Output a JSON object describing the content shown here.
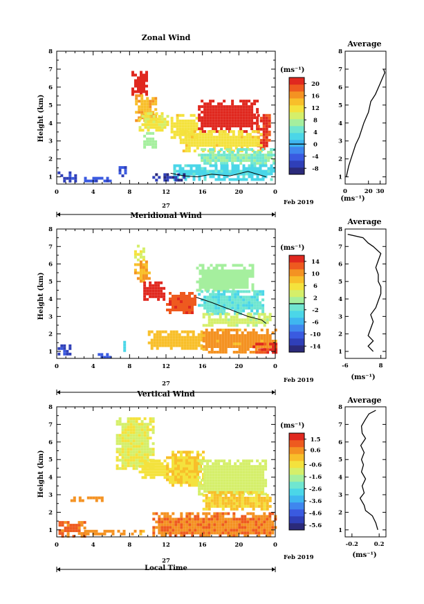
{
  "colors": {
    "scale": [
      "#2b2a7a",
      "#2f3fb8",
      "#3a5ae0",
      "#3f86ee",
      "#3fb6f0",
      "#4bd6e8",
      "#70e6d0",
      "#a5ef9e",
      "#d5ef6a",
      "#f4e23d",
      "#f8bf2a",
      "#f49222",
      "#ee5a1f",
      "#e0281f"
    ]
  },
  "chart_data": [
    {
      "type": "heatmap",
      "title": "Zonal Wind",
      "ylabel": "Height (km)",
      "xlim": [
        0,
        24
      ],
      "ylim": [
        0.6,
        8.0
      ],
      "xticks": [
        "0",
        "4",
        "8",
        "12",
        "16",
        "20",
        "0"
      ],
      "yticks": [
        "1",
        "2",
        "3",
        "4",
        "5",
        "6",
        "7",
        "8"
      ],
      "date_label": "27",
      "month_label": "Feb 2019",
      "colorbar": {
        "unit": "(ms⁻¹)",
        "ticks": [
          "20",
          "16",
          "12",
          "8",
          "4",
          "0",
          "-4",
          "-8"
        ],
        "range": [
          -10,
          22
        ],
        "zero_line": 0
      },
      "field": [
        {
          "x0": 8.2,
          "x1": 9.9,
          "y0": 5.6,
          "y1": 6.9,
          "v": 21
        },
        {
          "x0": 8.6,
          "x1": 10.8,
          "y0": 4.2,
          "y1": 5.6,
          "v": 15
        },
        {
          "x0": 9.0,
          "x1": 12.2,
          "y0": 3.6,
          "y1": 4.6,
          "v": 11
        },
        {
          "x0": 9.5,
          "x1": 11.0,
          "y0": 2.6,
          "y1": 3.5,
          "v": 7
        },
        {
          "x0": 12.5,
          "x1": 15.5,
          "y0": 3.2,
          "y1": 4.5,
          "v": 12
        },
        {
          "x0": 15.5,
          "x1": 22.0,
          "y0": 3.6,
          "y1": 5.3,
          "v": 21
        },
        {
          "x0": 22.0,
          "x1": 23.4,
          "y0": 2.6,
          "y1": 4.5,
          "v": 20
        },
        {
          "x0": 13.5,
          "x1": 22.5,
          "y0": 2.5,
          "y1": 3.6,
          "v": 12
        },
        {
          "x0": 15.5,
          "x1": 23.8,
          "y0": 1.7,
          "y1": 2.6,
          "v": 6
        },
        {
          "x0": 12.8,
          "x1": 24.0,
          "y0": 0.9,
          "y1": 1.7,
          "v": 3
        },
        {
          "x0": 10.5,
          "x1": 14.0,
          "y0": 0.8,
          "y1": 1.2,
          "v": -7
        },
        {
          "x0": 0.1,
          "x1": 2.0,
          "y0": 0.8,
          "y1": 1.3,
          "v": -6
        },
        {
          "x0": 6.8,
          "x1": 7.6,
          "y0": 1.0,
          "y1": 1.6,
          "v": -5
        },
        {
          "x0": 3.0,
          "x1": 6.0,
          "y0": 0.8,
          "y1": 1.0,
          "v": -5
        }
      ],
      "contour": [
        [
          12.5,
          1.2
        ],
        [
          14,
          1.05
        ],
        [
          15.5,
          1.0
        ],
        [
          17,
          1.15
        ],
        [
          19,
          1.05
        ],
        [
          21,
          1.3
        ],
        [
          23,
          1.0
        ]
      ],
      "average": {
        "title": "Average",
        "xlim": [
          0,
          35
        ],
        "xticks": [
          "0",
          "20",
          "30"
        ],
        "xlabel": "(ms⁻¹)",
        "x": [
          1,
          2,
          3,
          5,
          7,
          9,
          12,
          14,
          16,
          18,
          20,
          21,
          22,
          24,
          26,
          28,
          30,
          32,
          34,
          33
        ],
        "y": [
          1.0,
          1.3,
          1.6,
          2.0,
          2.4,
          2.8,
          3.2,
          3.6,
          4.0,
          4.3,
          4.6,
          4.9,
          5.2,
          5.4,
          5.6,
          5.9,
          6.2,
          6.5,
          6.8,
          7.0
        ]
      }
    },
    {
      "type": "heatmap",
      "title": "Meridional Wind",
      "ylabel": "Height (km)",
      "xlim": [
        0,
        24
      ],
      "ylim": [
        0.6,
        8.0
      ],
      "xticks": [
        "0",
        "4",
        "8",
        "12",
        "16",
        "20",
        "0"
      ],
      "yticks": [
        "1",
        "2",
        "3",
        "4",
        "5",
        "6",
        "7",
        "8"
      ],
      "date_label": "27",
      "month_label": "Feb 2019",
      "colorbar": {
        "unit": "(ms⁻¹)",
        "ticks": [
          "14",
          "10",
          "6",
          "2",
          "-2",
          "-6",
          "-10",
          "-14"
        ],
        "range": [
          -16,
          16
        ],
        "zero_line": 0
      },
      "field": [
        {
          "x0": 8.5,
          "x1": 9.6,
          "y0": 6.2,
          "y1": 7.1,
          "v": 4
        },
        {
          "x0": 8.5,
          "x1": 10.2,
          "y0": 5.0,
          "y1": 6.2,
          "v": 9
        },
        {
          "x0": 9.5,
          "x1": 11.8,
          "y0": 4.0,
          "y1": 5.0,
          "v": 15
        },
        {
          "x0": 12.0,
          "x1": 15.2,
          "y0": 3.2,
          "y1": 4.4,
          "v": 13
        },
        {
          "x0": 15.3,
          "x1": 21.5,
          "y0": 4.5,
          "y1": 6.0,
          "v": 1
        },
        {
          "x0": 15.5,
          "x1": 22.5,
          "y0": 3.2,
          "y1": 4.5,
          "v": -2
        },
        {
          "x0": 16.0,
          "x1": 23.5,
          "y0": 2.5,
          "y1": 3.2,
          "v": 3
        },
        {
          "x0": 10.0,
          "x1": 16.0,
          "y0": 1.2,
          "y1": 2.2,
          "v": 8
        },
        {
          "x0": 16.0,
          "x1": 24.0,
          "y0": 1.0,
          "y1": 2.3,
          "v": 10
        },
        {
          "x0": 21.5,
          "x1": 24.0,
          "y0": 0.9,
          "y1": 1.5,
          "v": 14
        },
        {
          "x0": 0.1,
          "x1": 1.4,
          "y0": 0.8,
          "y1": 1.4,
          "v": -12
        },
        {
          "x0": 7.0,
          "x1": 7.6,
          "y0": 1.0,
          "y1": 1.6,
          "v": -4
        },
        {
          "x0": 4.5,
          "x1": 6.0,
          "y0": 0.7,
          "y1": 0.9,
          "v": -10
        }
      ],
      "contour": [
        [
          15.3,
          4.1
        ],
        [
          17,
          3.8
        ],
        [
          19,
          3.4
        ],
        [
          21,
          3.0
        ],
        [
          22.5,
          2.8
        ],
        [
          23,
          2.6
        ]
      ],
      "average": {
        "title": "Average",
        "xlim": [
          -6,
          10
        ],
        "xticks": [
          "-6",
          "8"
        ],
        "xlabel": "(ms⁻¹)",
        "x": [
          5,
          3,
          5,
          3,
          4,
          5,
          4,
          6,
          7,
          8,
          8,
          7,
          7,
          6,
          7,
          8,
          5,
          3,
          1,
          -5
        ],
        "y": [
          1.0,
          1.3,
          1.6,
          1.9,
          2.3,
          2.7,
          3.1,
          3.5,
          3.9,
          4.3,
          4.7,
          5.0,
          5.4,
          5.8,
          6.2,
          6.6,
          7.0,
          7.2,
          7.5,
          7.7
        ]
      }
    },
    {
      "type": "heatmap",
      "title": "Vertical Wind",
      "ylabel": "Height (km)",
      "xlabel": "Local Time",
      "xlim": [
        0,
        24
      ],
      "ylim": [
        0.6,
        8.0
      ],
      "xticks": [
        "0",
        "4",
        "8",
        "12",
        "16",
        "20",
        "0"
      ],
      "yticks": [
        "1",
        "2",
        "3",
        "4",
        "5",
        "6",
        "7",
        "8"
      ],
      "date_label": "27",
      "month_label": "Feb 2019",
      "colorbar": {
        "unit": "(ms⁻¹)",
        "ticks": [
          "1.5",
          "0.6",
          "-0.6",
          "-1.6",
          "-2.6",
          "-3.6",
          "-4.6",
          "-5.6"
        ],
        "range": [
          -6.0,
          2.0
        ],
        "zero_line": null
      },
      "field": [
        {
          "x0": 6.5,
          "x1": 10.5,
          "y0": 4.5,
          "y1": 7.4,
          "v": -0.9
        },
        {
          "x0": 9.0,
          "x1": 12.5,
          "y0": 4.0,
          "y1": 5.0,
          "v": -0.6
        },
        {
          "x0": 12.0,
          "x1": 16.0,
          "y0": 3.5,
          "y1": 5.5,
          "v": -0.3
        },
        {
          "x0": 15.5,
          "x1": 23.0,
          "y0": 3.0,
          "y1": 5.0,
          "v": -1.1
        },
        {
          "x0": 16.0,
          "x1": 23.5,
          "y0": 2.2,
          "y1": 3.2,
          "v": -0.2
        },
        {
          "x0": 10.5,
          "x1": 24.0,
          "y0": 0.7,
          "y1": 2.0,
          "v": 0.8
        },
        {
          "x0": 0.2,
          "x1": 3.0,
          "y0": 0.7,
          "y1": 1.5,
          "v": 0.9
        },
        {
          "x0": 3.0,
          "x1": 9.5,
          "y0": 0.7,
          "y1": 1.0,
          "v": 0.5
        },
        {
          "x0": 1.5,
          "x1": 5.0,
          "y0": 2.6,
          "y1": 2.9,
          "v": 0.6
        }
      ],
      "contour": [],
      "average": {
        "title": "Average",
        "xlim": [
          -0.3,
          0.3
        ],
        "xticks": [
          "-0.2",
          "0.2"
        ],
        "xlabel": "(ms⁻¹)",
        "x": [
          0.18,
          0.15,
          0.1,
          0.0,
          -0.02,
          -0.08,
          -0.02,
          -0.05,
          0.0,
          -0.06,
          -0.03,
          -0.06,
          -0.02,
          -0.07,
          0.0,
          -0.05,
          -0.06,
          0.0,
          0.05,
          0.15
        ],
        "y": [
          1.0,
          1.4,
          1.8,
          2.1,
          2.4,
          2.8,
          3.1,
          3.5,
          3.9,
          4.3,
          4.7,
          5.0,
          5.4,
          5.8,
          6.2,
          6.5,
          6.9,
          7.3,
          7.6,
          7.8
        ]
      }
    }
  ]
}
